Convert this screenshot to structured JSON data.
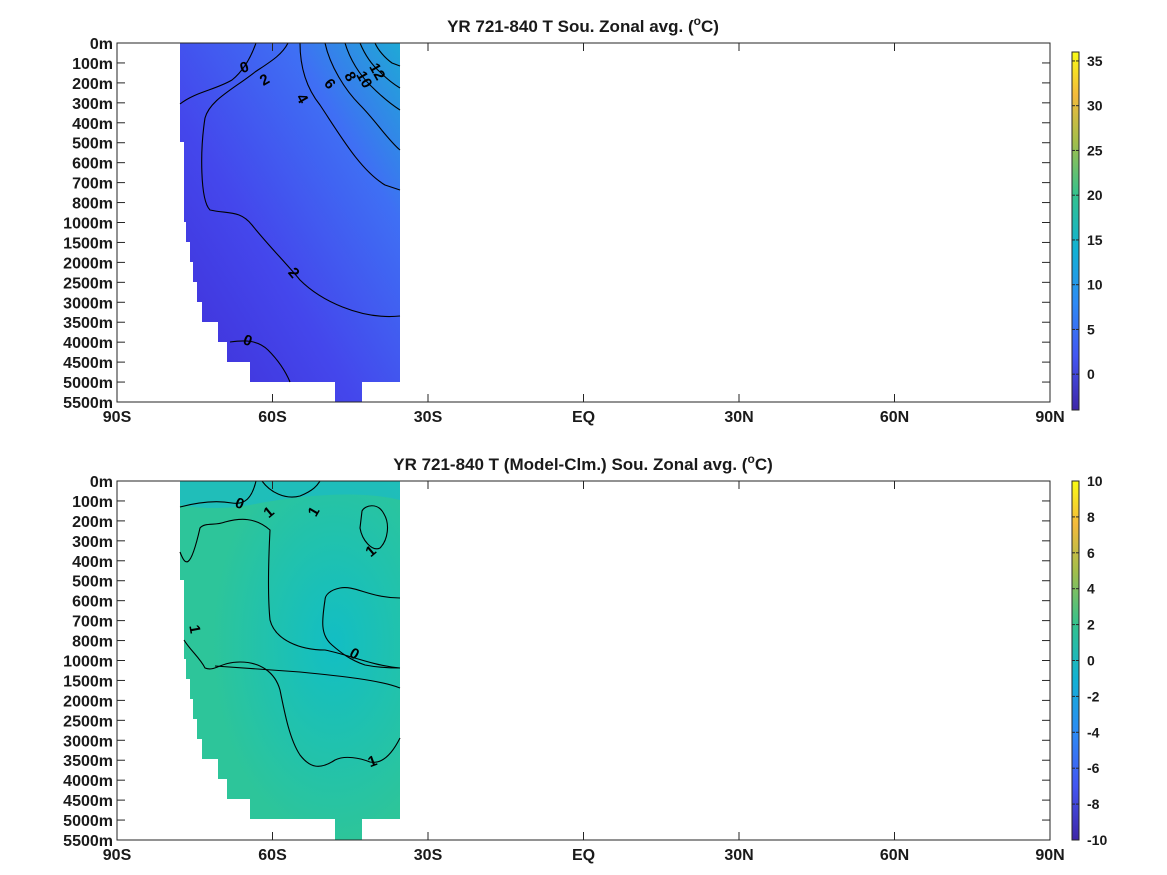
{
  "chart_data": [
    {
      "type": "heatmap",
      "title": "YR 721-840 T Sou. Zonal avg. (",
      "title_sup": "o",
      "title_unit": "C)",
      "x_ticks": [
        "90S",
        "60S",
        "30S",
        "EQ",
        "30N",
        "60N",
        "90N"
      ],
      "x_values": [
        -90,
        -60,
        -30,
        0,
        30,
        60,
        90
      ],
      "y_ticks": [
        "0m",
        "100m",
        "200m",
        "300m",
        "400m",
        "500m",
        "600m",
        "700m",
        "800m",
        "1000m",
        "1500m",
        "2000m",
        "2500m",
        "3000m",
        "3500m",
        "4000m",
        "4500m",
        "5000m",
        "5500m"
      ],
      "colorbar": {
        "min": -4,
        "max": 36,
        "ticks": [
          "35",
          "30",
          "25",
          "20",
          "15",
          "10",
          "5",
          "0"
        ],
        "tick_values": [
          35,
          30,
          25,
          20,
          15,
          10,
          5,
          0
        ]
      },
      "data_extent": {
        "lat_min": -78,
        "lat_max": -35
      },
      "contour_labels": [
        "0",
        "2",
        "4",
        "6",
        "8",
        "10",
        "12",
        "2",
        "0"
      ],
      "values_description_levels": [
        0,
        2,
        4,
        6,
        8,
        10,
        12
      ],
      "grid": false
    },
    {
      "type": "heatmap",
      "title": "YR 721-840 T (Model-Clm.) Sou. Zonal avg. (",
      "title_sup": "o",
      "title_unit": "C)",
      "x_ticks": [
        "90S",
        "60S",
        "30S",
        "EQ",
        "30N",
        "60N",
        "90N"
      ],
      "x_values": [
        -90,
        -60,
        -30,
        0,
        30,
        60,
        90
      ],
      "y_ticks": [
        "0m",
        "100m",
        "200m",
        "300m",
        "400m",
        "500m",
        "600m",
        "700m",
        "800m",
        "1000m",
        "1500m",
        "2000m",
        "2500m",
        "3000m",
        "3500m",
        "4000m",
        "4500m",
        "5000m",
        "5500m"
      ],
      "colorbar": {
        "min": -10,
        "max": 10,
        "ticks": [
          "10",
          "8",
          "6",
          "4",
          "2",
          "0",
          "-2",
          "-4",
          "-6",
          "-8",
          "-10"
        ],
        "tick_values": [
          10,
          8,
          6,
          4,
          2,
          0,
          -2,
          -4,
          -6,
          -8,
          -10
        ]
      },
      "data_extent": {
        "lat_min": -78,
        "lat_max": -35
      },
      "contour_labels": [
        "0",
        "1",
        "1",
        "1",
        "1",
        "0",
        "1"
      ],
      "values_description_levels": [
        0,
        1
      ],
      "grid": false
    }
  ]
}
